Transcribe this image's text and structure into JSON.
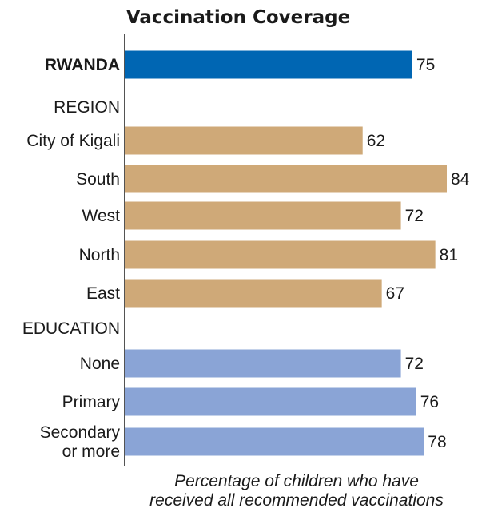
{
  "chart_data": {
    "type": "bar",
    "orientation": "horizontal",
    "title": "Vaccination Coverage",
    "caption_lines": [
      "Percentage of children who have",
      "received all recommended vaccinations"
    ],
    "xlim": [
      0,
      84
    ],
    "grid": false,
    "rows": [
      {
        "kind": "bar",
        "label": [
          "RWANDA"
        ],
        "value": 75,
        "color": "#0066b3",
        "bold": true
      },
      {
        "kind": "header",
        "label": [
          "REGION"
        ]
      },
      {
        "kind": "bar",
        "label": [
          "City of Kigali"
        ],
        "value": 62,
        "color": "#cfa978"
      },
      {
        "kind": "bar",
        "label": [
          "South"
        ],
        "value": 84,
        "color": "#cfa978"
      },
      {
        "kind": "bar",
        "label": [
          "West"
        ],
        "value": 72,
        "color": "#cfa978"
      },
      {
        "kind": "bar",
        "label": [
          "North"
        ],
        "value": 81,
        "color": "#cfa978"
      },
      {
        "kind": "bar",
        "label": [
          "East"
        ],
        "value": 67,
        "color": "#cfa978"
      },
      {
        "kind": "header",
        "label": [
          "EDUCATION"
        ]
      },
      {
        "kind": "bar",
        "label": [
          "None"
        ],
        "value": 72,
        "color": "#8aa4d6"
      },
      {
        "kind": "bar",
        "label": [
          "Primary"
        ],
        "value": 76,
        "color": "#8aa4d6"
      },
      {
        "kind": "bar",
        "label": [
          "Secondary",
          "or more"
        ],
        "value": 78,
        "color": "#8aa4d6"
      }
    ]
  }
}
